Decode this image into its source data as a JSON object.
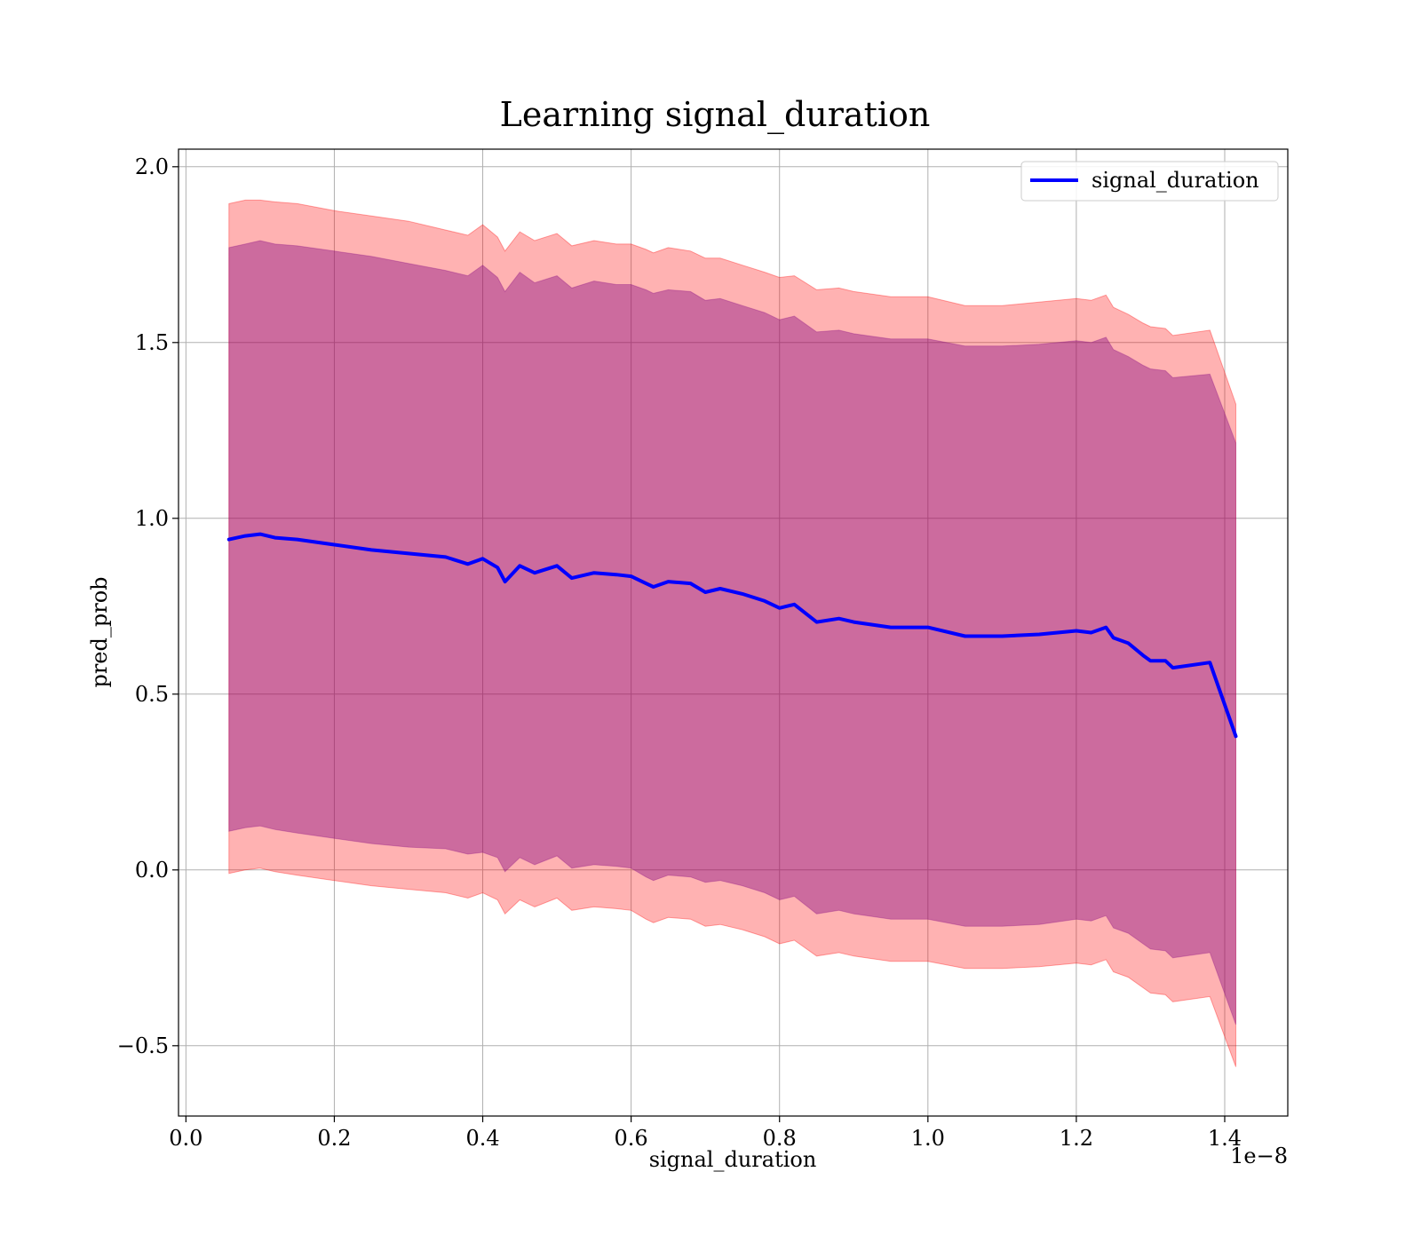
{
  "chart_data": {
    "type": "line",
    "title": "Learning signal_duration",
    "xlabel": "signal_duration",
    "ylabel": "pred_prob",
    "x_offset_label": "1e−8",
    "xlim": [
      -0.01,
      1.485
    ],
    "ylim": [
      -0.7,
      2.05
    ],
    "xticks": [
      0.0,
      0.2,
      0.4,
      0.6,
      0.8,
      1.0,
      1.2,
      1.4
    ],
    "xtick_labels": [
      "0.0",
      "0.2",
      "0.4",
      "0.6",
      "0.8",
      "1.0",
      "1.2",
      "1.4"
    ],
    "yticks": [
      -0.5,
      0.0,
      0.5,
      1.0,
      1.5,
      2.0
    ],
    "ytick_labels": [
      "−0.5",
      "0.0",
      "0.5",
      "1.0",
      "1.5",
      "2.0"
    ],
    "grid": true,
    "legend_position": "top-right",
    "colors": {
      "line": "#0000ff",
      "band_outer": "#ff0000",
      "band_inner": "#800080",
      "grid": "#b0b0b0",
      "axes": "#000000"
    },
    "series": [
      {
        "name": "signal_duration",
        "x": [
          0.058,
          0.08,
          0.1,
          0.12,
          0.15,
          0.2,
          0.25,
          0.3,
          0.35,
          0.38,
          0.4,
          0.42,
          0.43,
          0.45,
          0.47,
          0.5,
          0.52,
          0.55,
          0.58,
          0.6,
          0.62,
          0.63,
          0.65,
          0.68,
          0.7,
          0.72,
          0.75,
          0.78,
          0.8,
          0.82,
          0.85,
          0.88,
          0.9,
          0.95,
          1.0,
          1.05,
          1.1,
          1.15,
          1.2,
          1.22,
          1.24,
          1.25,
          1.27,
          1.29,
          1.3,
          1.32,
          1.33,
          1.38,
          1.415
        ],
        "y": [
          0.94,
          0.95,
          0.955,
          0.945,
          0.94,
          0.925,
          0.91,
          0.9,
          0.89,
          0.87,
          0.885,
          0.86,
          0.82,
          0.865,
          0.845,
          0.865,
          0.83,
          0.845,
          0.84,
          0.835,
          0.815,
          0.805,
          0.82,
          0.815,
          0.79,
          0.8,
          0.785,
          0.765,
          0.745,
          0.755,
          0.705,
          0.715,
          0.705,
          0.69,
          0.69,
          0.665,
          0.665,
          0.67,
          0.68,
          0.675,
          0.69,
          0.66,
          0.645,
          0.61,
          0.595,
          0.595,
          0.575,
          0.59,
          0.38
        ],
        "outer_upper": [
          1.895,
          1.905,
          1.905,
          1.9,
          1.895,
          1.875,
          1.86,
          1.845,
          1.82,
          1.805,
          1.835,
          1.8,
          1.76,
          1.815,
          1.79,
          1.81,
          1.775,
          1.79,
          1.78,
          1.78,
          1.765,
          1.755,
          1.77,
          1.76,
          1.74,
          1.74,
          1.72,
          1.7,
          1.685,
          1.69,
          1.65,
          1.655,
          1.645,
          1.63,
          1.63,
          1.605,
          1.605,
          1.615,
          1.625,
          1.62,
          1.635,
          1.6,
          1.58,
          1.555,
          1.545,
          1.54,
          1.52,
          1.535,
          1.325
        ],
        "inner_upper": [
          1.77,
          1.78,
          1.79,
          1.78,
          1.775,
          1.76,
          1.745,
          1.725,
          1.705,
          1.69,
          1.72,
          1.685,
          1.645,
          1.7,
          1.67,
          1.69,
          1.655,
          1.675,
          1.665,
          1.665,
          1.65,
          1.64,
          1.65,
          1.645,
          1.62,
          1.625,
          1.605,
          1.585,
          1.565,
          1.575,
          1.53,
          1.535,
          1.525,
          1.51,
          1.51,
          1.49,
          1.49,
          1.495,
          1.505,
          1.5,
          1.515,
          1.48,
          1.46,
          1.435,
          1.425,
          1.42,
          1.4,
          1.41,
          1.215
        ],
        "inner_lower": [
          0.11,
          0.12,
          0.125,
          0.115,
          0.105,
          0.09,
          0.075,
          0.065,
          0.06,
          0.045,
          0.05,
          0.035,
          -0.005,
          0.035,
          0.015,
          0.04,
          0.005,
          0.015,
          0.01,
          0.005,
          -0.02,
          -0.03,
          -0.015,
          -0.02,
          -0.035,
          -0.03,
          -0.045,
          -0.065,
          -0.085,
          -0.075,
          -0.125,
          -0.115,
          -0.125,
          -0.14,
          -0.14,
          -0.16,
          -0.16,
          -0.155,
          -0.14,
          -0.145,
          -0.13,
          -0.165,
          -0.18,
          -0.21,
          -0.225,
          -0.23,
          -0.25,
          -0.235,
          -0.44
        ],
        "outer_lower": [
          -0.01,
          0.0,
          0.005,
          -0.005,
          -0.015,
          -0.03,
          -0.045,
          -0.055,
          -0.065,
          -0.08,
          -0.065,
          -0.085,
          -0.125,
          -0.085,
          -0.105,
          -0.08,
          -0.115,
          -0.105,
          -0.11,
          -0.115,
          -0.14,
          -0.15,
          -0.135,
          -0.14,
          -0.16,
          -0.155,
          -0.17,
          -0.19,
          -0.21,
          -0.2,
          -0.245,
          -0.235,
          -0.245,
          -0.26,
          -0.26,
          -0.28,
          -0.28,
          -0.275,
          -0.265,
          -0.27,
          -0.255,
          -0.29,
          -0.305,
          -0.335,
          -0.35,
          -0.355,
          -0.375,
          -0.36,
          -0.56
        ]
      }
    ]
  }
}
